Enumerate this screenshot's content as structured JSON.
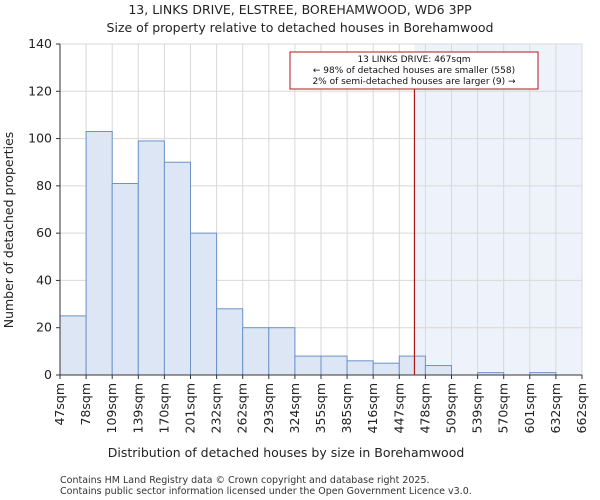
{
  "chart_data": {
    "type": "bar",
    "title": "13, LINKS DRIVE, ELSTREE, BOREHAMWOOD, WD6 3PP",
    "subtitle": "Size of property relative to detached houses in Borehamwood",
    "xlabel": "Distribution of detached houses by size in Borehamwood",
    "ylabel": "Number of detached properties",
    "bin_edges": [
      "47sqm",
      "78sqm",
      "109sqm",
      "139sqm",
      "170sqm",
      "201sqm",
      "232sqm",
      "262sqm",
      "293sqm",
      "324sqm",
      "355sqm",
      "385sqm",
      "416sqm",
      "447sqm",
      "478sqm",
      "509sqm",
      "539sqm",
      "570sqm",
      "601sqm",
      "632sqm",
      "662sqm"
    ],
    "values": [
      25,
      103,
      81,
      99,
      90,
      60,
      28,
      20,
      20,
      8,
      8,
      6,
      5,
      8,
      4,
      0,
      1,
      0,
      1,
      0
    ],
    "ylim": [
      0,
      140
    ],
    "yticks": [
      0,
      20,
      40,
      60,
      80,
      100,
      120,
      140
    ],
    "grid": true,
    "bar_color": "#dce6f4",
    "bar_edge_color": "#6b93c7",
    "highlight_region_color": "#eef3fb",
    "marker": {
      "value_sqm": 467,
      "bin_index": 13.58,
      "color": "#b01818",
      "annotation_lines": [
        "13 LINKS DRIVE: 467sqm",
        "← 98% of detached houses are smaller (558)",
        "2% of semi-detached houses are larger (9) →"
      ]
    }
  },
  "footer": {
    "line1": "Contains HM Land Registry data © Crown copyright and database right 2025.",
    "line2": "Contains public sector information licensed under the Open Government Licence v3.0."
  }
}
